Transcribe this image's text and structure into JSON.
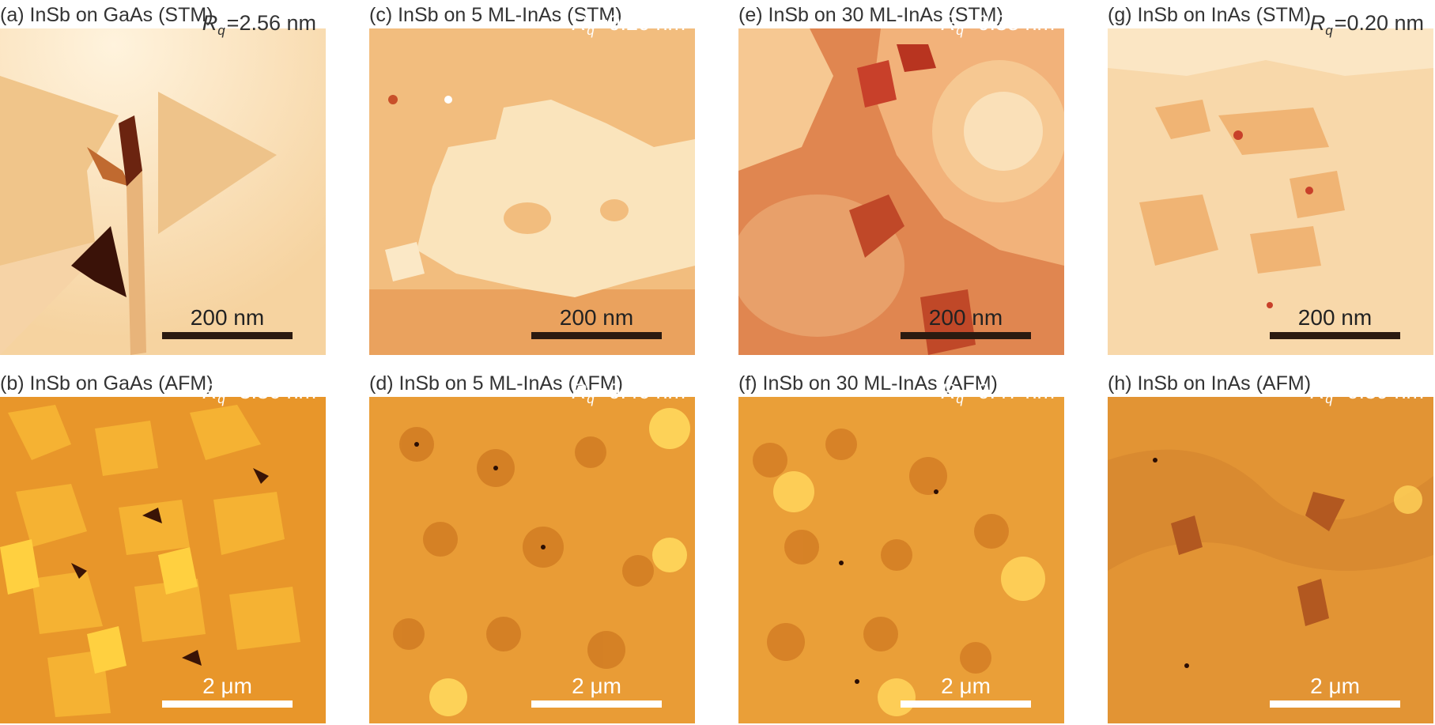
{
  "panels": [
    {
      "id": "a",
      "caption": "(a) InSb on GaAs (STM)",
      "rq_label": "R",
      "rq_sub": "q",
      "rq_value": "=2.56 nm",
      "scale_label": "200 nm"
    },
    {
      "id": "c",
      "caption": "(c) InSb on 5 ML-InAs (STM)",
      "rq_label": "R",
      "rq_sub": "q",
      "rq_value": "=0.20 nm",
      "scale_label": "200 nm"
    },
    {
      "id": "e",
      "caption": "(e) InSb on 30 ML-InAs (STM)",
      "rq_label": "R",
      "rq_sub": "q",
      "rq_value": "=0.38 nm",
      "scale_label": "200 nm"
    },
    {
      "id": "g",
      "caption": "(g) InSb on InAs (STM)",
      "rq_label": "R",
      "rq_sub": "q",
      "rq_value": "=0.20 nm",
      "scale_label": "200 nm"
    },
    {
      "id": "b",
      "caption": "(b) InSb on GaAs (AFM)",
      "rq_label": "R",
      "rq_sub": "q",
      "rq_value": "=3.36 nm",
      "scale_label": "2 μm"
    },
    {
      "id": "d",
      "caption": "(d) InSb on 5 ML-InAs (AFM)",
      "rq_label": "R",
      "rq_sub": "q",
      "rq_value": "=0.46 nm",
      "scale_label": "2 μm"
    },
    {
      "id": "f",
      "caption": "(f) InSb on 30 ML-InAs (AFM)",
      "rq_label": "R",
      "rq_sub": "q",
      "rq_value": "=0.47 nm",
      "scale_label": "2 μm"
    },
    {
      "id": "h",
      "caption": "(h) InSb on InAs (AFM)",
      "rq_label": "R",
      "rq_sub": "q",
      "rq_value": "=0.39 nm",
      "scale_label": "2 μm"
    }
  ],
  "colors": {
    "stm_bright": "#fbe8c6",
    "stm_mid": "#f2c58c",
    "stm_dark": "#c8502a",
    "afm_base": "#e9a03a",
    "afm_bright": "#ffd25a",
    "afm_dark": "#a0501a",
    "scale_bar_dark": "#2b1a10",
    "scale_bar_light": "#ffffff"
  }
}
